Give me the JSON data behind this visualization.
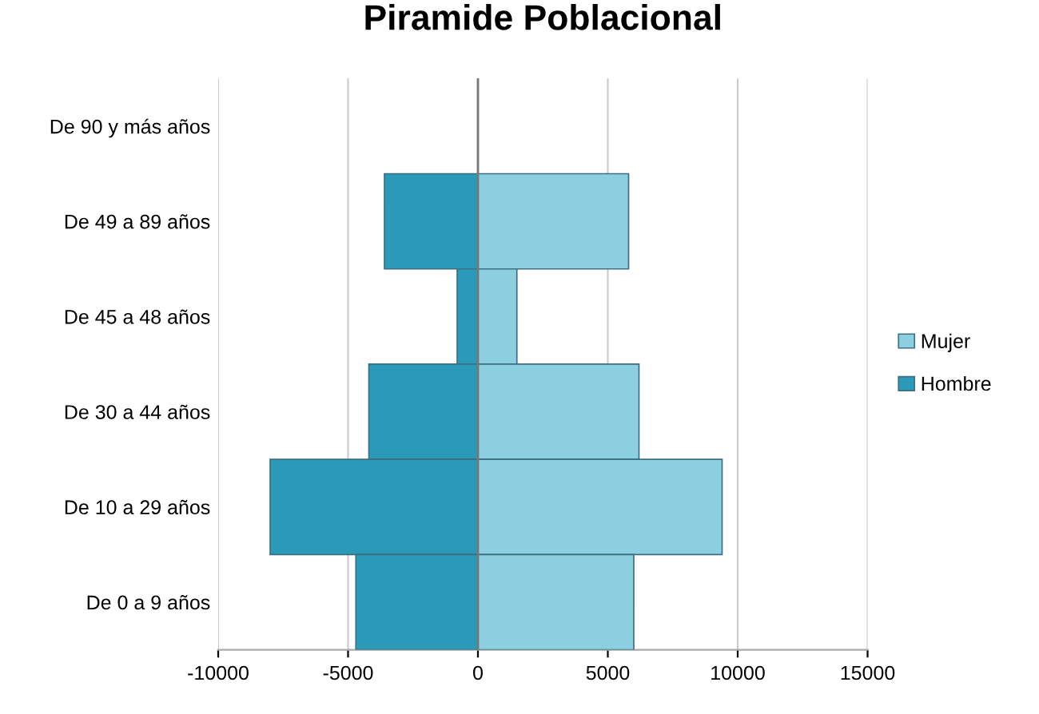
{
  "chart_data": {
    "type": "bar",
    "orientation": "horizontal",
    "title": "Piramide Poblacional",
    "categories": [
      "De 90 y más años",
      "De 49 a 89 años",
      "De 45 a 48 años",
      "De 30 a 44 años",
      "De 10 a 29 años",
      "De 0 a 9 años"
    ],
    "series": [
      {
        "name": "Mujer",
        "color": "#8ccfe0",
        "values": [
          null,
          5800,
          1500,
          6200,
          9400,
          6000
        ]
      },
      {
        "name": "Hombre",
        "color": "#2a9ab8",
        "values": [
          null,
          -3600,
          -800,
          -4200,
          -8000,
          -4700
        ]
      }
    ],
    "xlim": [
      -10000,
      15000
    ],
    "xticks": [
      -10000,
      -5000,
      0,
      5000,
      10000,
      15000
    ],
    "stacked": true,
    "grid": "x",
    "legend": "right"
  }
}
